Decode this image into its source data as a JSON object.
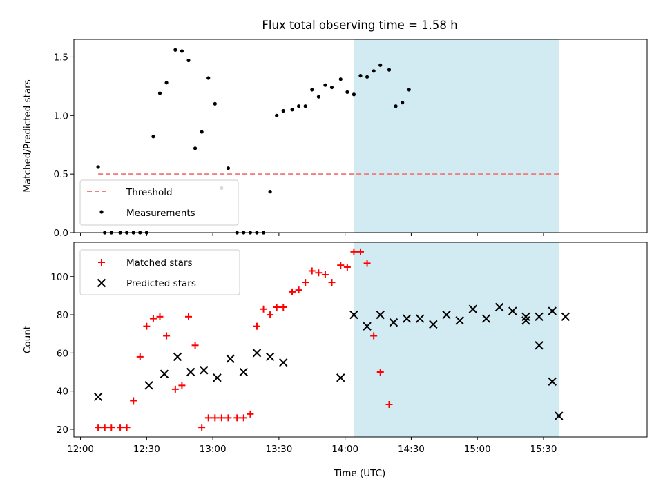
{
  "title": "Flux total observing time = 1.58 h",
  "xlabel": "Time (UTC)",
  "colors": {
    "shade": "#add8e6",
    "threshold": "#f08080",
    "matched": "#ff0000",
    "predicted": "#000000",
    "measurement": "#000000"
  },
  "x_ticks": [
    "12:00",
    "12:30",
    "13:00",
    "13:30",
    "14:00",
    "14:30",
    "15:00",
    "15:30"
  ],
  "chart_data": [
    {
      "type": "scatter",
      "ylabel": "Matched/Predicted stars",
      "x_unit": "time (UTC)",
      "xlim": [
        "11:57",
        "16:17"
      ],
      "ylim": [
        0,
        1.65
      ],
      "y_ticks": [
        "0.0",
        "0.5",
        "1.0",
        "1.5"
      ],
      "y_tick_values": [
        0,
        0.5,
        1.0,
        1.5
      ],
      "shaded_range": [
        "14:04",
        "15:37"
      ],
      "grid": false,
      "legend": {
        "placement": "lower-left",
        "entries": [
          "Threshold",
          "Measurements"
        ]
      },
      "threshold": {
        "name": "Threshold",
        "value": 0.5,
        "x_range": [
          "12:08",
          "15:37"
        ]
      },
      "series": [
        {
          "name": "Measurements",
          "x": [
            "12:08",
            "12:11",
            "12:14",
            "12:18",
            "12:21",
            "12:24",
            "12:27",
            "12:30",
            "12:33",
            "12:36",
            "12:39",
            "12:43",
            "12:46",
            "12:49",
            "12:52",
            "12:55",
            "12:58",
            "13:01",
            "13:04",
            "13:07",
            "13:11",
            "13:14",
            "13:17",
            "13:20",
            "13:23",
            "13:26",
            "13:29",
            "13:32",
            "13:36",
            "13:39",
            "13:42",
            "13:45",
            "13:48",
            "13:51",
            "13:54",
            "13:58",
            "14:01",
            "14:04",
            "14:07",
            "14:10",
            "14:13",
            "14:16",
            "14:20",
            "14:23",
            "14:26",
            "14:29",
            "14:32",
            "14:35",
            "14:38",
            "14:42",
            "14:45",
            "14:48",
            "14:51",
            "14:54",
            "14:57",
            "15:00",
            "15:03",
            "15:06",
            "15:09",
            "15:12",
            "15:16",
            "15:19",
            "15:22",
            "15:25",
            "15:28",
            "15:31",
            "15:34",
            "15:37"
          ],
          "y": [
            0.56,
            0.0,
            0.0,
            0.0,
            0.0,
            0.0,
            0.0,
            0.0,
            0.82,
            1.19,
            1.28,
            1.56,
            1.55,
            1.47,
            0.72,
            0.86,
            1.32,
            1.1,
            0.38,
            0.55,
            0.0,
            0.0,
            0.0,
            0.0,
            0.0,
            0.35,
            1.0,
            1.04,
            1.05,
            1.08,
            1.08,
            1.22,
            1.16,
            1.26,
            1.24,
            1.31,
            1.2,
            1.18,
            1.34,
            1.33,
            1.38,
            1.43,
            1.39,
            1.08,
            1.11,
            1.22,
            null,
            null,
            null,
            null,
            null,
            null,
            null,
            null,
            null,
            null,
            null,
            null,
            null,
            null,
            null,
            null,
            null,
            null,
            null,
            null,
            null,
            null
          ]
        }
      ]
    },
    {
      "type": "scatter",
      "ylabel": "Count",
      "x_unit": "time (UTC)",
      "xlim": [
        "11:57",
        "16:17"
      ],
      "ylim": [
        16,
        118
      ],
      "y_ticks": [
        "20",
        "40",
        "60",
        "80",
        "100"
      ],
      "y_tick_values": [
        20,
        40,
        60,
        80,
        100
      ],
      "shaded_range": [
        "14:04",
        "15:37"
      ],
      "grid": false,
      "legend": {
        "placement": "top-left",
        "entries": [
          "Matched stars",
          "Predicted stars"
        ]
      },
      "series": [
        {
          "name": "Matched stars",
          "marker": "plus",
          "x": [
            "12:08",
            "12:11",
            "12:14",
            "12:18",
            "12:21",
            "12:24",
            "12:27",
            "12:30",
            "12:33",
            "12:36",
            "12:39",
            "12:43",
            "12:46",
            "12:49",
            "12:52",
            "12:55",
            "12:58",
            "13:01",
            "13:04",
            "13:07",
            "13:11",
            "13:14",
            "13:17",
            "13:20",
            "13:23",
            "13:26",
            "13:29",
            "13:32",
            "13:36",
            "13:39",
            "13:42",
            "13:45",
            "13:48",
            "13:51",
            "13:54",
            "13:58",
            "14:01",
            "14:04",
            "14:07",
            "14:10",
            "14:13",
            "14:16",
            "14:20",
            "14:23",
            "14:26",
            "14:29",
            "14:32",
            "14:35",
            "14:38",
            "14:42",
            "14:45",
            "14:48",
            "14:51",
            "14:54",
            "14:57",
            "15:00",
            "15:03",
            "15:06",
            "15:09",
            "15:12",
            "15:16",
            "15:19",
            "15:22",
            "15:25",
            "15:28",
            "15:31",
            "15:34",
            "15:37"
          ],
          "y": [
            21,
            21,
            21,
            21,
            21,
            35,
            58,
            74,
            78,
            79,
            69,
            41,
            43,
            79,
            64,
            21,
            26,
            26,
            26,
            26,
            26,
            26,
            28,
            74,
            83,
            80,
            84,
            84,
            92,
            93,
            97,
            103,
            102,
            101,
            97,
            106,
            105,
            113,
            113,
            107,
            69,
            50,
            33,
            null,
            null,
            null,
            null,
            null,
            null,
            null,
            null,
            null,
            null,
            null,
            null,
            null,
            null,
            null,
            null,
            null,
            null,
            null,
            null,
            null,
            null,
            null,
            null,
            null
          ]
        },
        {
          "name": "Predicted stars",
          "marker": "x",
          "x": [
            "12:08",
            "12:31",
            "12:38",
            "12:44",
            "12:50",
            "12:56",
            "13:02",
            "13:08",
            "13:14",
            "13:20",
            "13:26",
            "13:32",
            "13:58",
            "14:04",
            "14:10",
            "14:16",
            "14:22",
            "14:28",
            "14:34",
            "14:40",
            "14:46",
            "14:52",
            "14:58",
            "15:04",
            "15:10",
            "15:16",
            "15:22",
            "15:28",
            "15:34",
            "15:40"
          ],
          "y": [
            37,
            43,
            49,
            58,
            50,
            51,
            47,
            57,
            50,
            60,
            58,
            55,
            47,
            80,
            74,
            80,
            76,
            78,
            78,
            75,
            80,
            77,
            83,
            78,
            84,
            82,
            79,
            79,
            82,
            79
          ]
        }
      ]
    }
  ],
  "pred_tail": {
    "x": [
      "15:22",
      "15:28",
      "15:34",
      "15:37"
    ],
    "y": [
      77,
      64,
      45,
      27
    ]
  }
}
